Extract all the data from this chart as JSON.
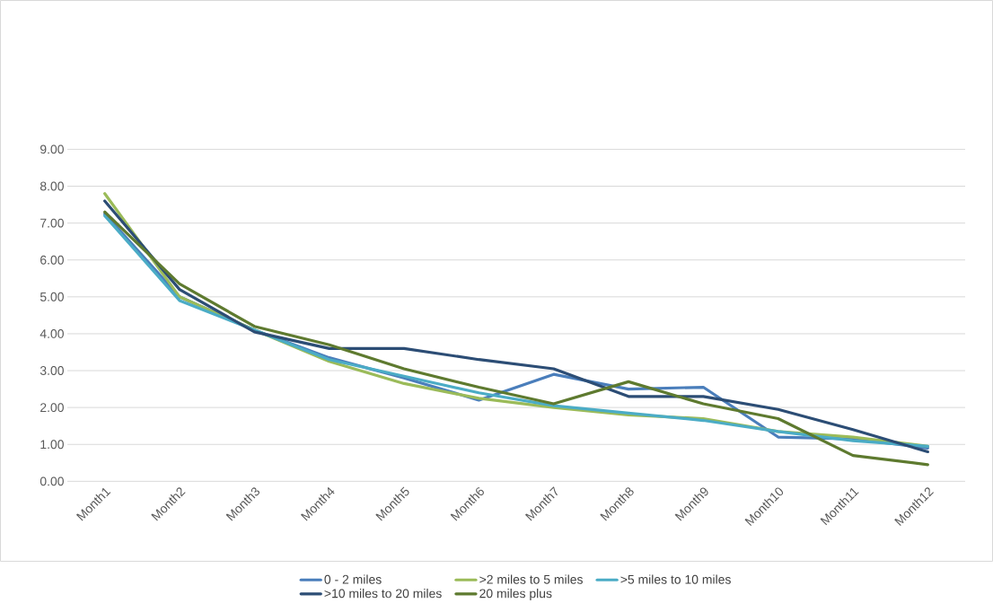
{
  "chart_data": {
    "type": "line",
    "categories": [
      "Month1",
      "Month2",
      "Month3",
      "Month4",
      "Month5",
      "Month6",
      "Month7",
      "Month8",
      "Month9",
      "Month10",
      "Month11",
      "Month12"
    ],
    "series": [
      {
        "name": "0 - 2 miles",
        "color": "#4a7ebb",
        "values": [
          7.25,
          5.0,
          4.1,
          3.35,
          2.8,
          2.2,
          2.9,
          2.5,
          2.55,
          1.2,
          1.15,
          0.9
        ]
      },
      {
        "name": ">2 miles to 5 miles",
        "color": "#9bbb59",
        "values": [
          7.8,
          5.0,
          4.1,
          3.25,
          2.65,
          2.25,
          2.0,
          1.8,
          1.7,
          1.35,
          1.2,
          0.95
        ]
      },
      {
        "name": ">5 miles to 10 miles",
        "color": "#4bacc6",
        "values": [
          7.2,
          4.9,
          4.1,
          3.3,
          2.85,
          2.4,
          2.05,
          1.85,
          1.65,
          1.35,
          1.1,
          0.95
        ]
      },
      {
        "name": ">10 miles to 20 miles",
        "color": "#2c4d75",
        "values": [
          7.6,
          5.2,
          4.05,
          3.6,
          3.6,
          3.3,
          3.05,
          2.3,
          2.3,
          1.95,
          1.4,
          0.8
        ]
      },
      {
        "name": "20 miles plus",
        "color": "#5e7a2f",
        "values": [
          7.3,
          5.35,
          4.2,
          3.7,
          3.05,
          2.55,
          2.1,
          2.7,
          2.1,
          1.7,
          0.7,
          0.45
        ]
      }
    ],
    "ylim": [
      0,
      9
    ],
    "yticks": [
      {
        "value": 0,
        "label": "0.00"
      },
      {
        "value": 1,
        "label": "1.00"
      },
      {
        "value": 2,
        "label": "2.00"
      },
      {
        "value": 3,
        "label": "3.00"
      },
      {
        "value": 4,
        "label": "4.00"
      },
      {
        "value": 5,
        "label": "5.00"
      },
      {
        "value": 6,
        "label": "6.00"
      },
      {
        "value": 7,
        "label": "7.00"
      },
      {
        "value": 8,
        "label": "8.00"
      },
      {
        "value": 9,
        "label": "9.00"
      }
    ],
    "grid": "y",
    "legend": "bottom",
    "marker": "none",
    "line_style": "solid"
  }
}
